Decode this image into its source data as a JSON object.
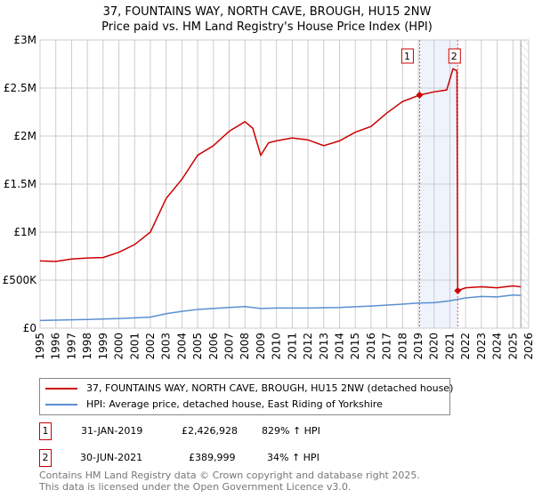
{
  "title": "37, FOUNTAINS WAY, NORTH CAVE, BROUGH, HU15 2NW",
  "subtitle": "Price paid vs. HM Land Registry's House Price Index (HPI)",
  "colors": {
    "property": "#cc0000",
    "hpi": "#5b8fd0"
  },
  "chart_data": {
    "type": "line",
    "xlim": [
      1995,
      2026
    ],
    "ylim": [
      0,
      3000000
    ],
    "yticks": [
      {
        "v": 0,
        "label": "£0"
      },
      {
        "v": 500000,
        "label": "£500K"
      },
      {
        "v": 1000000,
        "label": "£1M"
      },
      {
        "v": 1500000,
        "label": "£1.5M"
      },
      {
        "v": 2000000,
        "label": "£2M"
      },
      {
        "v": 2500000,
        "label": "£2.5M"
      },
      {
        "v": 3000000,
        "label": "£3M"
      }
    ],
    "xticks": [
      "1995",
      "1996",
      "1997",
      "1998",
      "1999",
      "2000",
      "2001",
      "2002",
      "2003",
      "2004",
      "2005",
      "2006",
      "2007",
      "2008",
      "2009",
      "2010",
      "2011",
      "2012",
      "2013",
      "2014",
      "2015",
      "2016",
      "2017",
      "2018",
      "2019",
      "2020",
      "2021",
      "2022",
      "2023",
      "2024",
      "2025",
      "2026"
    ],
    "series": [
      {
        "name": "37, FOUNTAINS WAY, NORTH CAVE, BROUGH, HU15 2NW (detached house)",
        "x": [
          1995,
          1996,
          1997,
          1998,
          1999,
          2000,
          2001,
          2002,
          2003,
          2004,
          2005,
          2006,
          2007,
          2008,
          2008.5,
          2009,
          2009.5,
          2010,
          2011,
          2012,
          2013,
          2014,
          2015,
          2016,
          2017,
          2018,
          2019.08,
          2020,
          2020.8,
          2021.2,
          2021.45,
          2021.5,
          2022,
          2023,
          2024,
          2025,
          2025.5
        ],
        "y": [
          700000,
          695000,
          720000,
          730000,
          735000,
          790000,
          870000,
          1000000,
          1350000,
          1550000,
          1800000,
          1900000,
          2050000,
          2150000,
          2080000,
          1800000,
          1930000,
          1950000,
          1980000,
          1960000,
          1900000,
          1950000,
          2040000,
          2100000,
          2240000,
          2360000,
          2426928,
          2460000,
          2480000,
          2700000,
          2680000,
          389999,
          420000,
          430000,
          420000,
          440000,
          430000
        ]
      },
      {
        "name": "HPI: Average price, detached house, East Riding of Yorkshire",
        "x": [
          1995,
          1998,
          2000,
          2002,
          2003,
          2004,
          2005,
          2007,
          2008,
          2009,
          2010,
          2012,
          2014,
          2016,
          2018,
          2019,
          2020,
          2021,
          2022,
          2023,
          2024,
          2025,
          2025.5
        ],
        "y": [
          80000,
          90000,
          100000,
          115000,
          150000,
          175000,
          195000,
          215000,
          225000,
          205000,
          210000,
          210000,
          215000,
          230000,
          250000,
          262000,
          265000,
          285000,
          315000,
          330000,
          325000,
          345000,
          340000
        ]
      }
    ],
    "sales": [
      {
        "label": "1",
        "x": 2019.08,
        "y": 2426928
      },
      {
        "label": "2",
        "x": 2021.5,
        "y": 389999
      }
    ],
    "shaded": [
      2019.08,
      2021.5
    ],
    "forecast_from": 2025.5
  },
  "legend": {
    "property": "37, FOUNTAINS WAY, NORTH CAVE, BROUGH, HU15 2NW (detached house)",
    "hpi": "HPI: Average price, detached house, East Riding of Yorkshire"
  },
  "transactions": [
    {
      "n": "1",
      "date": "31-JAN-2019",
      "price": "£2,426,928",
      "delta": "829% ↑ HPI"
    },
    {
      "n": "2",
      "date": "30-JUN-2021",
      "price": "£389,999",
      "delta": "34% ↑ HPI"
    }
  ],
  "footer": {
    "line1": "Contains HM Land Registry data © Crown copyright and database right 2025.",
    "line2": "This data is licensed under the Open Government Licence v3.0."
  }
}
